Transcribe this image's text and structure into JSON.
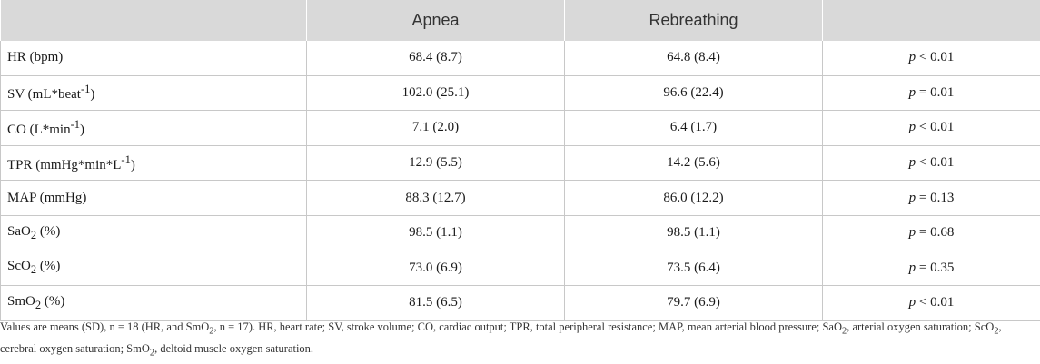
{
  "table": {
    "headers": [
      "",
      "Apnea",
      "Rebreathing",
      ""
    ],
    "rows": [
      {
        "label": "HR (bpm)",
        "apnea": "68.4 (8.7)",
        "rebreathing": "64.8 (8.4)",
        "p_letter": "p",
        "p_op": "<",
        "p_val": "0.01"
      },
      {
        "label": "SV (mL*beat",
        "label_sup": "-1",
        "label_tail": ")",
        "apnea": "102.0 (25.1)",
        "rebreathing": "96.6 (22.4)",
        "p_letter": "p",
        "p_op": "=",
        "p_val": "0.01"
      },
      {
        "label": "CO (L*min",
        "label_sup": "-1",
        "label_tail": ")",
        "apnea": "7.1 (2.0)",
        "rebreathing": "6.4 (1.7)",
        "p_letter": "p",
        "p_op": "<",
        "p_val": "0.01"
      },
      {
        "label": "TPR (mmHg*min*L",
        "label_sup": "-1",
        "label_tail": ")",
        "apnea": "12.9 (5.5)",
        "rebreathing": "14.2 (5.6)",
        "p_letter": "p",
        "p_op": "<",
        "p_val": "0.01"
      },
      {
        "label": "MAP (mmHg)",
        "apnea": "88.3 (12.7)",
        "rebreathing": "86.0 (12.2)",
        "p_letter": "p",
        "p_op": "=",
        "p_val": "0.13"
      },
      {
        "label": "SaO",
        "label_sub": "2",
        "label_tail": " (%)",
        "apnea": "98.5 (1.1)",
        "rebreathing": "98.5 (1.1)",
        "p_letter": "p",
        "p_op": "=",
        "p_val": "0.68"
      },
      {
        "label": "ScO",
        "label_sub": "2",
        "label_tail": " (%)",
        "apnea": "73.0 (6.9)",
        "rebreathing": "73.5 (6.4)",
        "p_letter": "p",
        "p_op": "=",
        "p_val": "0.35"
      },
      {
        "label": "SmO",
        "label_sub": "2",
        "label_tail": " (%)",
        "apnea": "81.5 (6.5)",
        "rebreathing": "79.7 (6.9)",
        "p_letter": "p",
        "p_op": "<",
        "p_val": "0.01"
      }
    ]
  },
  "footnote": {
    "line1_a": "Values are means (SD), n = 18 (HR, and SmO",
    "line1_sub1": "2",
    "line1_b": ", n = 17). HR, heart rate; SV, stroke volume; CO, cardiac output; TPR, total peripheral resistance; MAP, mean arterial blood pressure; SaO",
    "line1_sub2": "2",
    "line1_c": ", arterial oxygen saturation; ScO",
    "line1_sub3": "2",
    "line1_d": ", cerebral oxygen saturation; SmO",
    "line1_sub4": "2",
    "line1_e": ", deltoid muscle oxygen saturation."
  }
}
